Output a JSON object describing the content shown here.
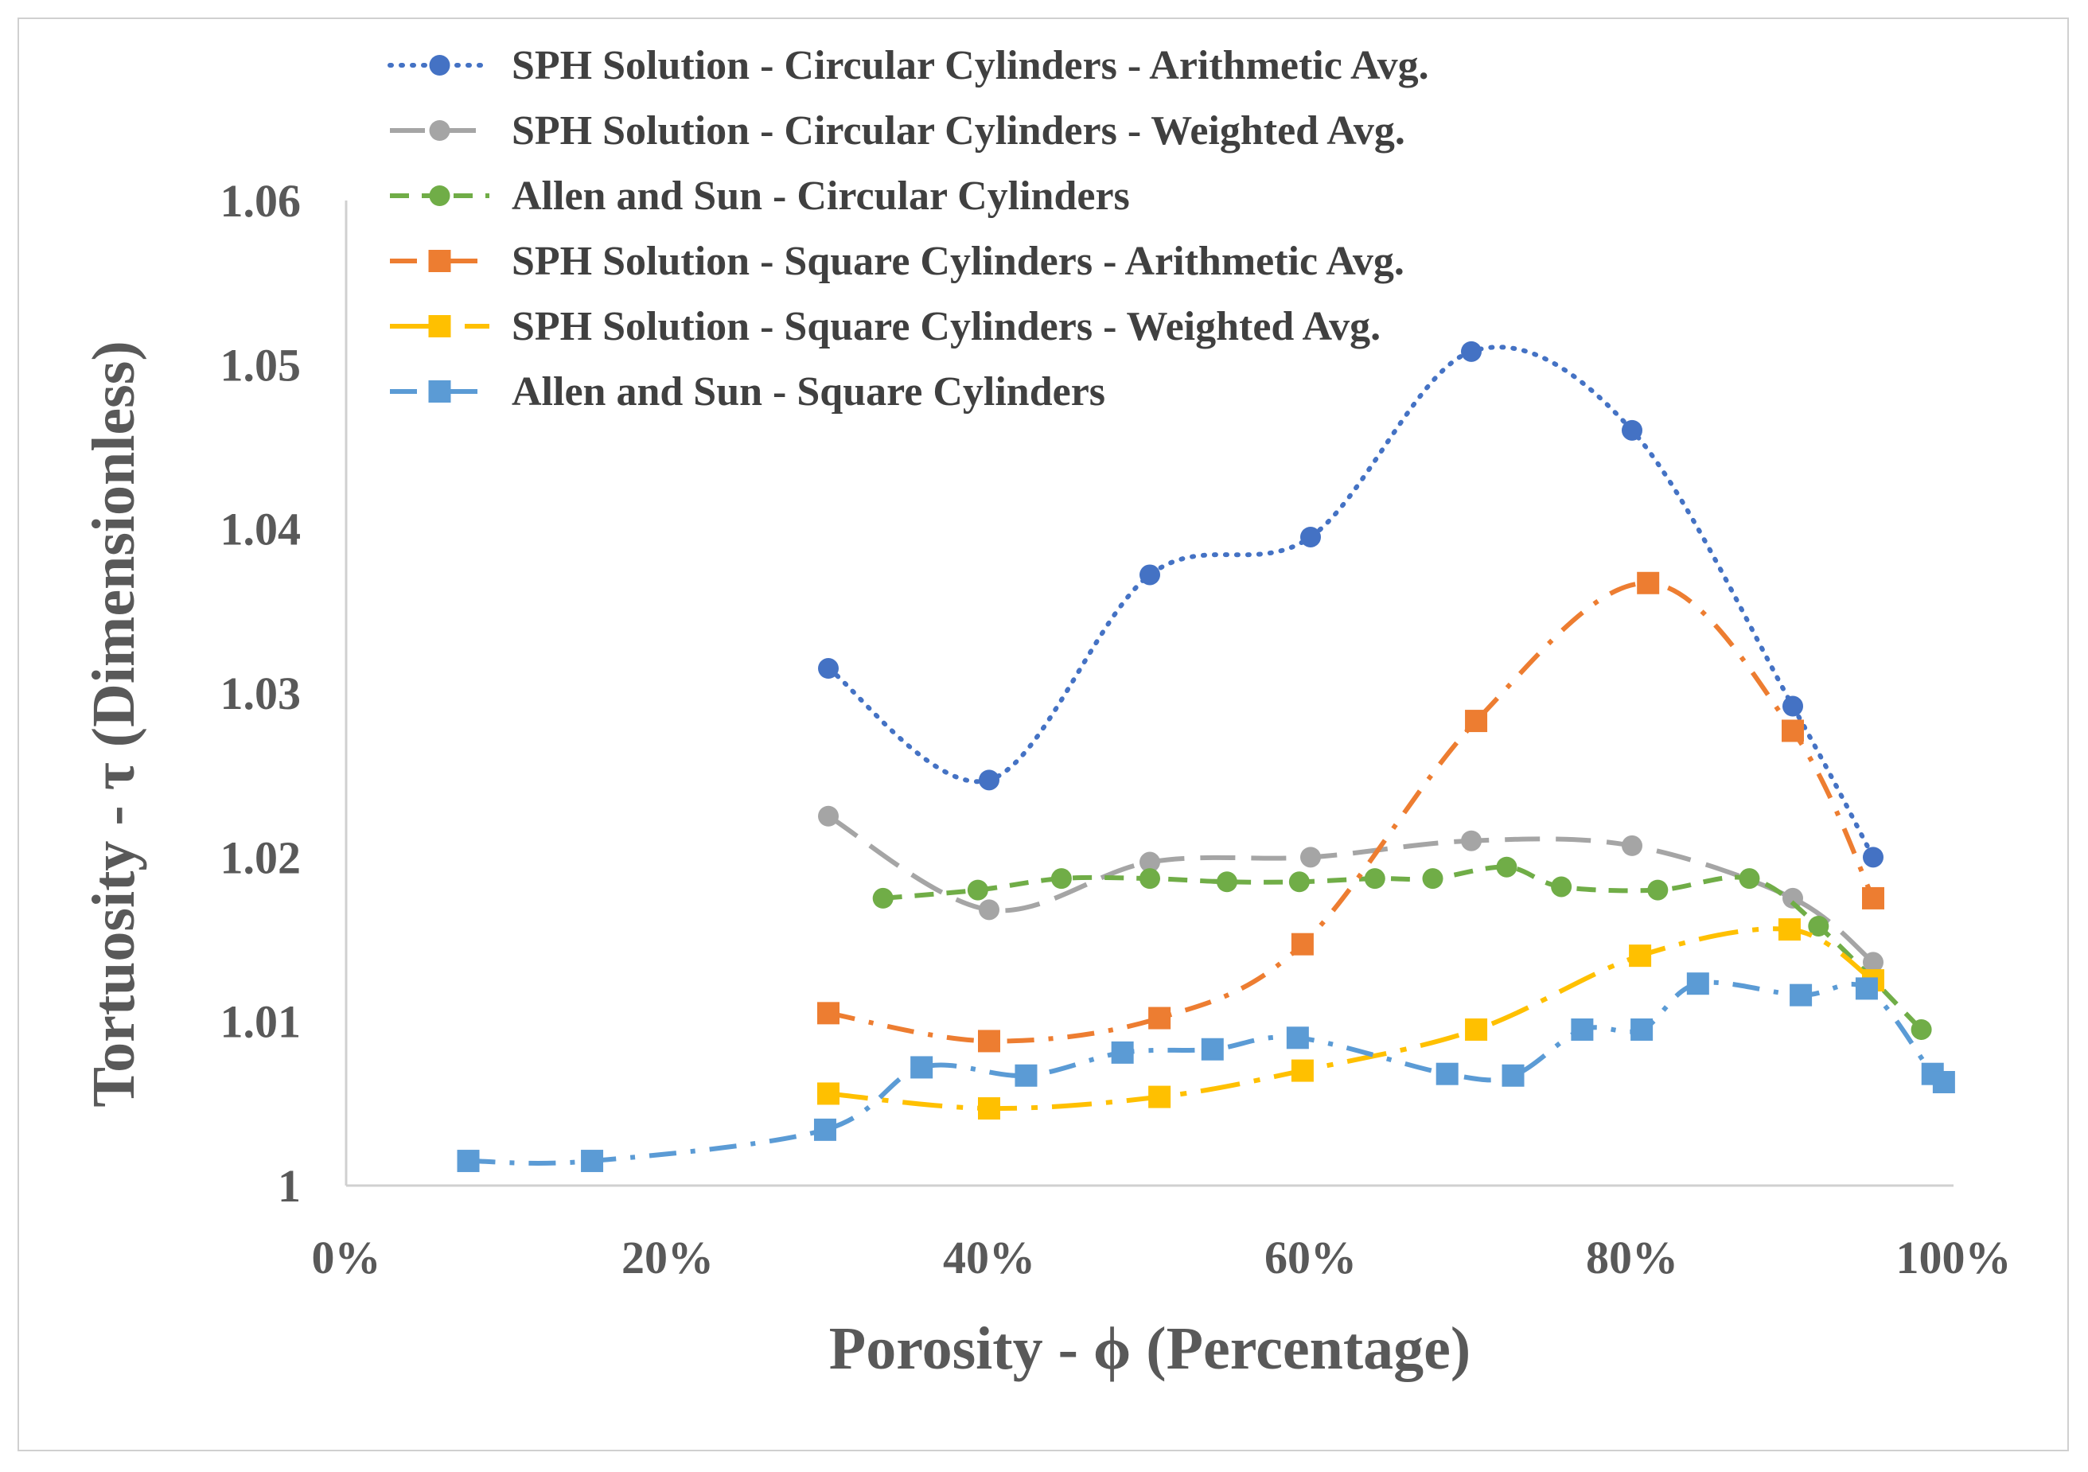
{
  "chart_data": {
    "type": "line",
    "title": "",
    "xlabel": "Porosity - ϕ (Percentage)",
    "ylabel": "Tortuosity - τ (Dimensionless)",
    "xlim": [
      0,
      100
    ],
    "ylim": [
      1,
      1.06
    ],
    "x_ticks": [
      "0%",
      "20%",
      "40%",
      "60%",
      "80%",
      "100%"
    ],
    "y_ticks": [
      "1",
      "1.01",
      "1.02",
      "1.03",
      "1.04",
      "1.05",
      "1.06"
    ],
    "grid": false,
    "legend_position": "top",
    "series": [
      {
        "name": "SPH Solution - Circular Cylinders - Arithmetic Avg.",
        "color": "#4472C4",
        "marker": "circle",
        "dash": "dot",
        "x": [
          30,
          40,
          50,
          60,
          70,
          80,
          90,
          95
        ],
        "y": [
          1.0315,
          1.0247,
          1.0372,
          1.0395,
          1.0508,
          1.046,
          1.0292,
          1.02
        ]
      },
      {
        "name": "SPH Solution - Circular Cylinders - Weighted Avg.",
        "color": "#A5A5A5",
        "marker": "circle",
        "dash": "longdash",
        "x": [
          30,
          40,
          50,
          60,
          70,
          80,
          90,
          95
        ],
        "y": [
          1.0225,
          1.0168,
          1.0197,
          1.02,
          1.021,
          1.0207,
          1.0175,
          1.0136
        ]
      },
      {
        "name": "Allen and Sun - Circular Cylinders",
        "color": "#70AD47",
        "marker": "circle",
        "dash": "dash",
        "x": [
          33.4,
          39.3,
          44.5,
          50,
          54.8,
          59.3,
          64,
          67.6,
          72.2,
          75.6,
          81.6,
          87.3,
          91.6,
          98
        ],
        "y": [
          1.0175,
          1.018,
          1.0187,
          1.0187,
          1.0185,
          1.0185,
          1.0187,
          1.0187,
          1.0194,
          1.0182,
          1.018,
          1.0187,
          1.0158,
          1.0095
        ]
      },
      {
        "name": "SPH Solution - Square Cylinders - Arithmetic Avg.",
        "color": "#ED7D31",
        "marker": "square",
        "dash": "dashdot",
        "x": [
          30,
          40,
          50.6,
          59.5,
          70.3,
          81,
          90,
          95
        ],
        "y": [
          1.0105,
          1.0088,
          1.0102,
          1.0147,
          1.0283,
          1.0367,
          1.0277,
          1.0175
        ]
      },
      {
        "name": "SPH Solution - Square Cylinders - Weighted Avg.",
        "color": "#FFC000",
        "marker": "square",
        "dash": "longdashdot",
        "x": [
          30,
          40,
          50.6,
          59.5,
          70.3,
          80.5,
          89.8,
          95
        ],
        "y": [
          1.0056,
          1.0047,
          1.0054,
          1.007,
          1.0095,
          1.014,
          1.0156,
          1.0125
        ]
      },
      {
        "name": "Allen and Sun - Square Cylinders",
        "color": "#5B9BD5",
        "marker": "square",
        "dash": "dashdot",
        "x": [
          7.6,
          15.3,
          29.8,
          35.8,
          42.3,
          48.3,
          53.9,
          59.2,
          68.5,
          72.6,
          76.9,
          80.6,
          84.1,
          90.5,
          94.6,
          98.7,
          99.4
        ],
        "y": [
          1.0015,
          1.0015,
          1.0034,
          1.0072,
          1.0067,
          1.0081,
          1.0083,
          1.009,
          1.0068,
          1.0067,
          1.0095,
          1.0095,
          1.0123,
          1.0116,
          1.012,
          1.0068,
          1.0063
        ]
      }
    ]
  }
}
